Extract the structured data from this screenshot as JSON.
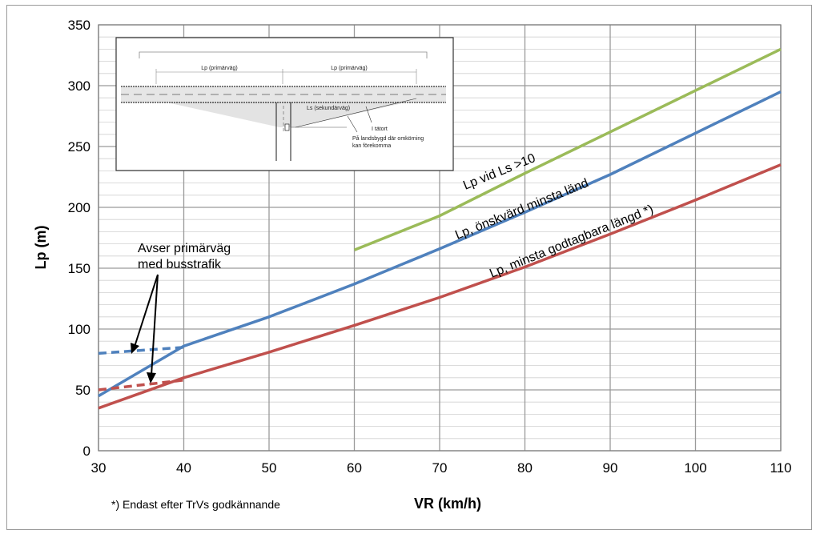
{
  "chart_data": {
    "type": "line",
    "title": "",
    "xlabel": "VR (km/h)",
    "ylabel": "Lp (m)",
    "xlim": [
      30,
      110
    ],
    "ylim": [
      0,
      350
    ],
    "x_ticks": [
      30,
      40,
      50,
      60,
      70,
      80,
      90,
      100,
      110
    ],
    "y_ticks": [
      0,
      50,
      100,
      150,
      200,
      250,
      300,
      350
    ],
    "grid": true,
    "series": [
      {
        "name": "Lp vid Ls >10",
        "color": "#9bbb59",
        "points": [
          [
            60,
            165
          ],
          [
            70,
            193
          ],
          [
            80,
            228
          ],
          [
            90,
            262
          ],
          [
            100,
            296
          ],
          [
            110,
            330
          ]
        ]
      },
      {
        "name": "Lp, önskvärd minsta länd",
        "color": "#4f81bd",
        "points": [
          [
            30,
            45
          ],
          [
            40,
            86
          ],
          [
            50,
            110
          ],
          [
            60,
            137
          ],
          [
            70,
            166
          ],
          [
            80,
            196
          ],
          [
            90,
            227
          ],
          [
            100,
            261
          ],
          [
            110,
            295
          ]
        ]
      },
      {
        "name": "Lp, minsta godtagbara längd *)",
        "color": "#c0504d",
        "points": [
          [
            30,
            35
          ],
          [
            40,
            60
          ],
          [
            50,
            81
          ],
          [
            60,
            103
          ],
          [
            70,
            126
          ],
          [
            80,
            151
          ],
          [
            90,
            178
          ],
          [
            100,
            206
          ],
          [
            110,
            235
          ]
        ]
      }
    ],
    "dashed_series": [
      {
        "color": "#4f81bd",
        "points": [
          [
            30,
            80
          ],
          [
            40,
            85
          ]
        ]
      },
      {
        "color": "#c0504d",
        "points": [
          [
            30,
            50
          ],
          [
            40,
            58
          ]
        ]
      }
    ],
    "annotations": {
      "bus_note_line1": "Avser primärväg",
      "bus_note_line2": "med busstrafik",
      "footnote": "*) Endast efter TrVs godkännande"
    },
    "inset": {
      "label_lp_left": "Lp (primärväg)",
      "label_lp_right": "Lp (primärväg)",
      "label_ls": "Ls (sekundärväg)",
      "label_tatort": "I tätort",
      "label_landsbygd_1": "På landsbygd där omkörning",
      "label_landsbygd_2": "kan förekomma"
    }
  }
}
